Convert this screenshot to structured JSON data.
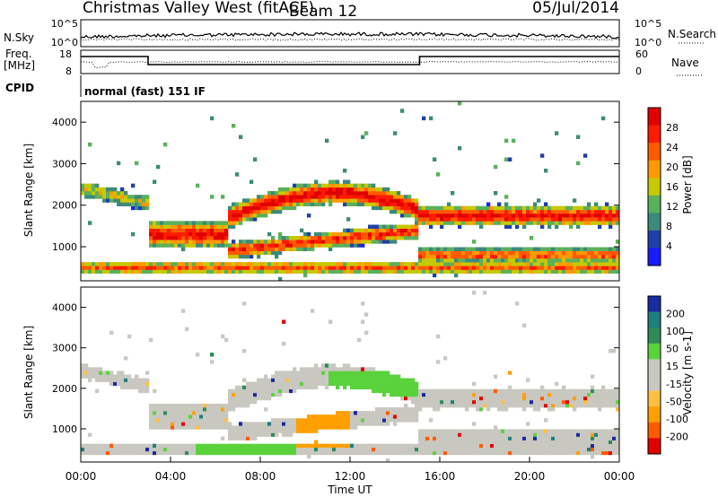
{
  "header": {
    "title": "Christmas Valley West (fitACF)",
    "beam": "Beam 12",
    "date": "05/Jul/2014"
  },
  "panels": {
    "nsky": {
      "left_label": "N.Sky",
      "ticks": [
        "10^5",
        "10^0"
      ],
      "right_ticks": [
        "10^5",
        "10^0"
      ],
      "right_label": "N.Search"
    },
    "freq": {
      "left_label_1": "Freq.",
      "left_label_2": "[MHz]",
      "ticks": [
        "18",
        "8"
      ],
      "right_ticks": [
        "60",
        "0"
      ],
      "right_label": "Nave"
    },
    "cpid": {
      "label": "CPID",
      "text": "normal (fast) 151 IF"
    }
  },
  "colors": {
    "power": [
      "#1a1aff",
      "#1f3fa8",
      "#3d8a7a",
      "#5bb05b",
      "#c8c800",
      "#ff9900",
      "#ff5a00",
      "#ff1a00",
      "#e00000"
    ],
    "velocity": [
      "#e00000",
      "#ff5a00",
      "#ff9f00",
      "#ffbf40",
      "#c8c8c0",
      "#c8c8c0",
      "#5ad23c",
      "#2e8b57",
      "#1f7f7f",
      "#1a2aa0"
    ]
  },
  "chart_data": [
    {
      "type": "heatmap",
      "name": "power",
      "ylabel": "Slant Range [km]",
      "xlabel": "",
      "ylim": [
        180,
        4500
      ],
      "xlim": [
        0,
        24
      ],
      "yticks": [
        "4000",
        "3000",
        "2000",
        "1000"
      ],
      "colorbar": {
        "label": "Power [dB]",
        "ticks": [
          "28",
          "24",
          "20",
          "16",
          "12",
          "8",
          "4"
        ]
      }
    },
    {
      "type": "heatmap",
      "name": "velocity",
      "ylabel": "Slant Range [km]",
      "xlabel": "Time UT",
      "ylim": [
        180,
        4500
      ],
      "xlim": [
        0,
        24
      ],
      "yticks": [
        "4000",
        "3000",
        "2000",
        "1000"
      ],
      "xticks": [
        "00:00",
        "04:00",
        "08:00",
        "12:00",
        "16:00",
        "20:00",
        "00:00"
      ],
      "colorbar": {
        "label": "Velocity [m s-1]",
        "ticks": [
          "200",
          "100",
          "50",
          "15",
          "-15",
          "-50",
          "-100",
          "-200"
        ]
      }
    }
  ]
}
